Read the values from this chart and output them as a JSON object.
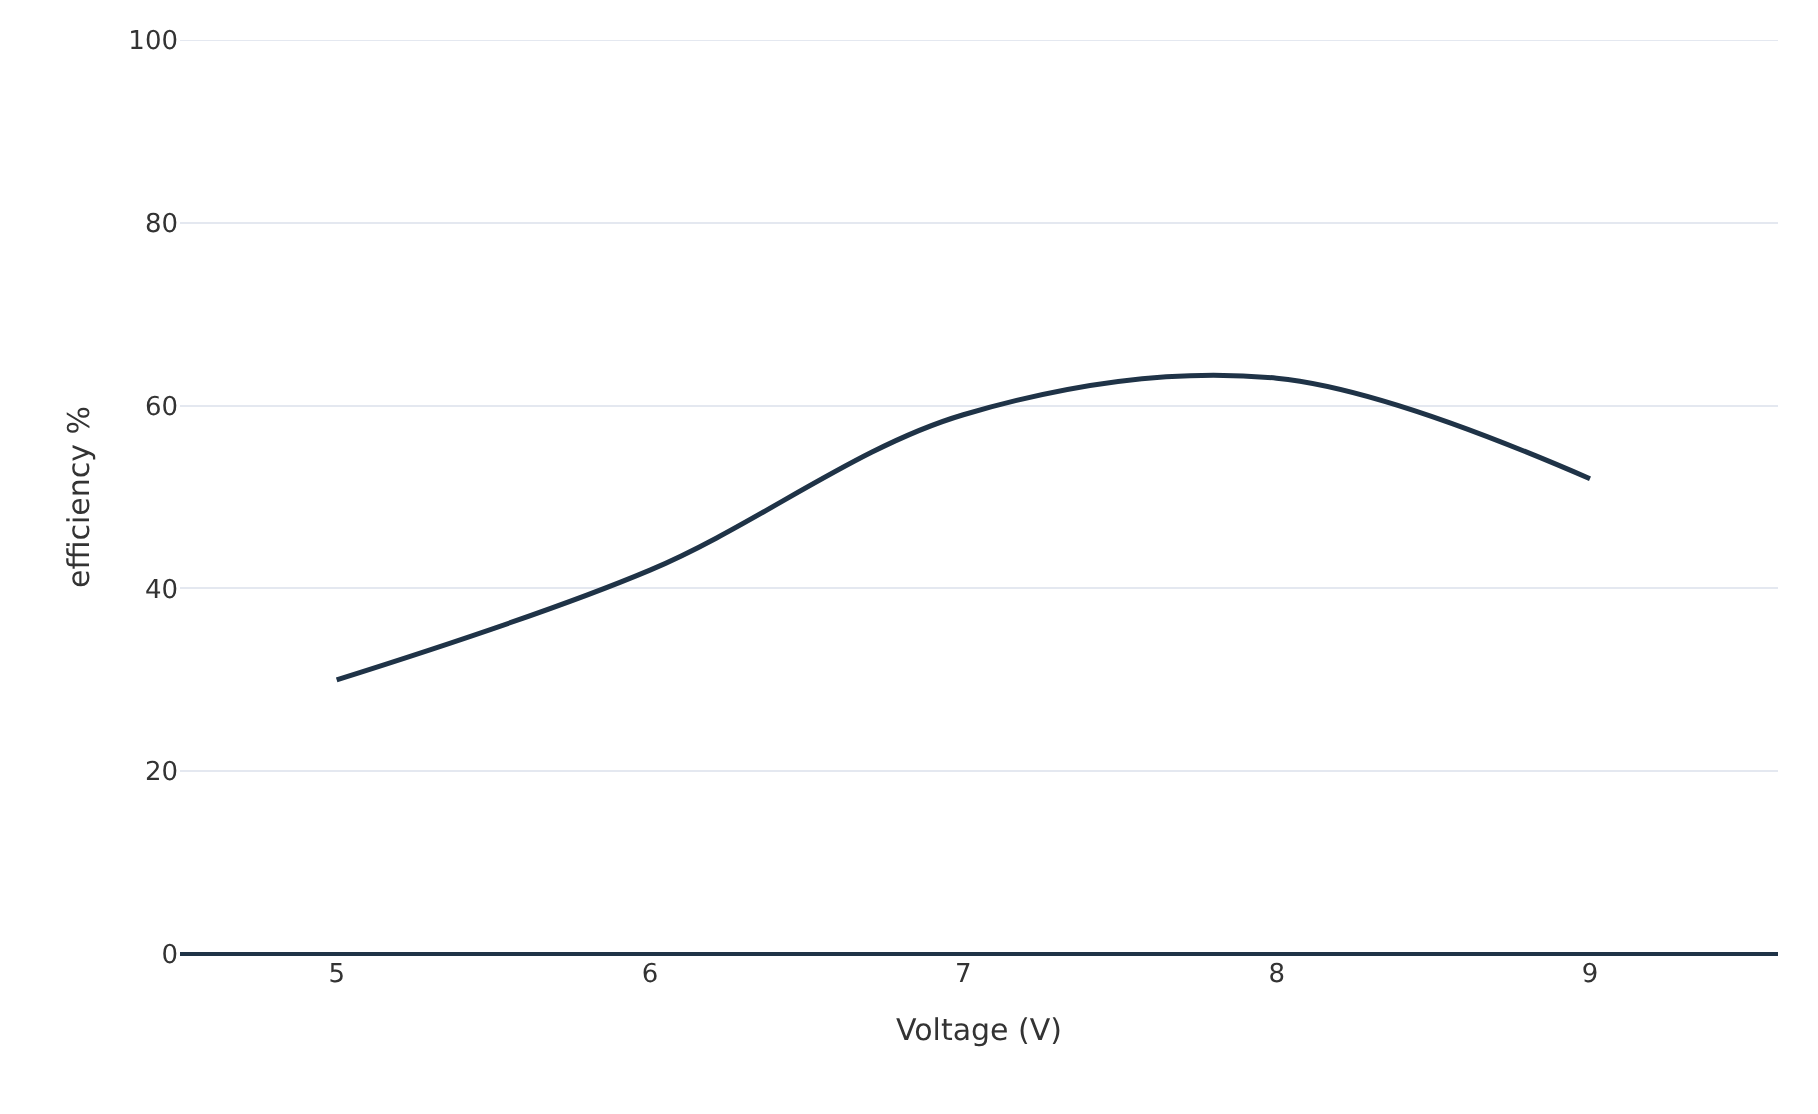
{
  "chart_data": {
    "type": "line",
    "xlabel": "Voltage (V)",
    "ylabel": "efficiency %",
    "x": [
      5,
      6,
      7,
      8,
      9
    ],
    "series": [
      {
        "color": "#1f3347",
        "values": [
          30,
          42,
          59,
          63,
          52
        ]
      }
    ],
    "xlim": [
      4.5,
      9.6
    ],
    "xticks": [
      5,
      6,
      7,
      8,
      9
    ],
    "ylim": [
      0,
      100
    ],
    "yticks": [
      0,
      20,
      40,
      60,
      80,
      100
    ],
    "grid": "y",
    "marker": "none",
    "line_style": "solid"
  }
}
